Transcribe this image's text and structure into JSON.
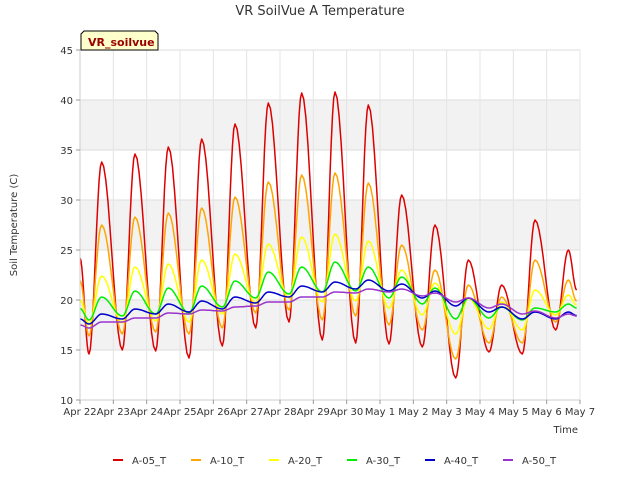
{
  "chart_data": {
    "type": "line",
    "title": "VR SoilVue A Temperature",
    "badge": "VR_soilvue",
    "xlabel": "Time",
    "ylabel": "Soil Temperature (C)",
    "xlim": [
      "2023-04-22",
      "2023-05-07"
    ],
    "ylim": [
      10,
      45
    ],
    "yticks": [
      10,
      15,
      20,
      25,
      30,
      35,
      40,
      45
    ],
    "xtick_labels": [
      "Apr 22",
      "Apr 23",
      "Apr 24",
      "Apr 25",
      "Apr 26",
      "Apr 27",
      "Apr 28",
      "Apr 29",
      "Apr 30",
      "May 1",
      "May 2",
      "May 3",
      "May 4",
      "May 5",
      "May 6",
      "May 7"
    ],
    "grid": true,
    "legend_position": "bottom",
    "x": [
      "2023-04-22",
      "2023-04-23",
      "2023-04-24",
      "2023-04-25",
      "2023-04-26",
      "2023-04-27",
      "2023-04-28",
      "2023-04-29",
      "2023-04-30",
      "2023-05-01",
      "2023-05-02",
      "2023-05-03",
      "2023-05-04",
      "2023-05-05",
      "2023-05-06"
    ],
    "daily_stats": "Values below are daily [min, max] pairs per series; the drawn line oscillates between them with the daytime peak.",
    "series": [
      {
        "name": "A-05_T",
        "color": "#dd0000",
        "values": [
          [
            14.6,
            33.8
          ],
          [
            15.0,
            34.6
          ],
          [
            14.9,
            35.3
          ],
          [
            14.2,
            36.1
          ],
          [
            15.4,
            37.6
          ],
          [
            17.2,
            39.7
          ],
          [
            17.8,
            40.7
          ],
          [
            16.0,
            40.8
          ],
          [
            15.7,
            39.5
          ],
          [
            15.6,
            30.5
          ],
          [
            15.3,
            27.5
          ],
          [
            12.2,
            24.0
          ],
          [
            14.8,
            21.5
          ],
          [
            14.6,
            28.0
          ],
          [
            17.0,
            25.0
          ]
        ]
      },
      {
        "name": "A-10_T",
        "color": "#ffa500",
        "values": [
          [
            16.4,
            27.5
          ],
          [
            16.6,
            28.3
          ],
          [
            16.8,
            28.7
          ],
          [
            16.6,
            29.2
          ],
          [
            17.2,
            30.3
          ],
          [
            18.7,
            31.8
          ],
          [
            19.0,
            32.5
          ],
          [
            18.0,
            32.7
          ],
          [
            18.4,
            31.7
          ],
          [
            17.5,
            25.5
          ],
          [
            17.0,
            23.0
          ],
          [
            14.1,
            21.5
          ],
          [
            15.7,
            20.3
          ],
          [
            15.7,
            24.0
          ],
          [
            17.8,
            22.0
          ]
        ]
      },
      {
        "name": "A-20_T",
        "color": "#ffff00",
        "values": [
          [
            17.6,
            22.4
          ],
          [
            17.7,
            23.3
          ],
          [
            17.9,
            23.6
          ],
          [
            17.8,
            24.0
          ],
          [
            18.6,
            24.6
          ],
          [
            19.7,
            25.6
          ],
          [
            20.2,
            26.3
          ],
          [
            19.8,
            26.6
          ],
          [
            19.9,
            25.9
          ],
          [
            19.2,
            23.0
          ],
          [
            18.5,
            21.7
          ],
          [
            16.6,
            20.2
          ],
          [
            17.1,
            19.8
          ],
          [
            17.0,
            21.0
          ],
          [
            18.5,
            20.5
          ]
        ]
      },
      {
        "name": "A-30_T",
        "color": "#00ee00",
        "values": [
          [
            18.0,
            20.3
          ],
          [
            18.4,
            20.9
          ],
          [
            18.6,
            21.2
          ],
          [
            18.7,
            21.4
          ],
          [
            19.3,
            21.9
          ],
          [
            20.2,
            22.8
          ],
          [
            20.6,
            23.3
          ],
          [
            20.8,
            23.8
          ],
          [
            20.9,
            23.3
          ],
          [
            20.2,
            22.3
          ],
          [
            19.6,
            21.2
          ],
          [
            18.1,
            20.2
          ],
          [
            18.2,
            19.3
          ],
          [
            18.0,
            19.2
          ],
          [
            18.8,
            19.6
          ]
        ]
      },
      {
        "name": "A-40_T",
        "color": "#0000cc",
        "values": [
          [
            17.6,
            18.6
          ],
          [
            18.1,
            19.1
          ],
          [
            18.6,
            19.6
          ],
          [
            18.8,
            19.9
          ],
          [
            19.1,
            20.3
          ],
          [
            19.7,
            20.8
          ],
          [
            20.3,
            21.4
          ],
          [
            20.8,
            21.8
          ],
          [
            21.1,
            22.0
          ],
          [
            20.9,
            21.6
          ],
          [
            20.2,
            20.9
          ],
          [
            19.4,
            20.2
          ],
          [
            18.8,
            19.3
          ],
          [
            18.1,
            18.8
          ],
          [
            18.1,
            18.8
          ]
        ]
      },
      {
        "name": "A-50_T",
        "color": "#9933cc",
        "values": [
          [
            17.2,
            17.8
          ],
          [
            17.8,
            18.2
          ],
          [
            18.2,
            18.7
          ],
          [
            18.6,
            19.0
          ],
          [
            18.9,
            19.3
          ],
          [
            19.4,
            19.8
          ],
          [
            19.8,
            20.3
          ],
          [
            20.3,
            20.8
          ],
          [
            20.7,
            21.1
          ],
          [
            20.8,
            21.1
          ],
          [
            20.4,
            20.7
          ],
          [
            19.8,
            20.2
          ],
          [
            19.2,
            19.6
          ],
          [
            18.6,
            18.9
          ],
          [
            18.2,
            18.6
          ]
        ]
      }
    ]
  }
}
